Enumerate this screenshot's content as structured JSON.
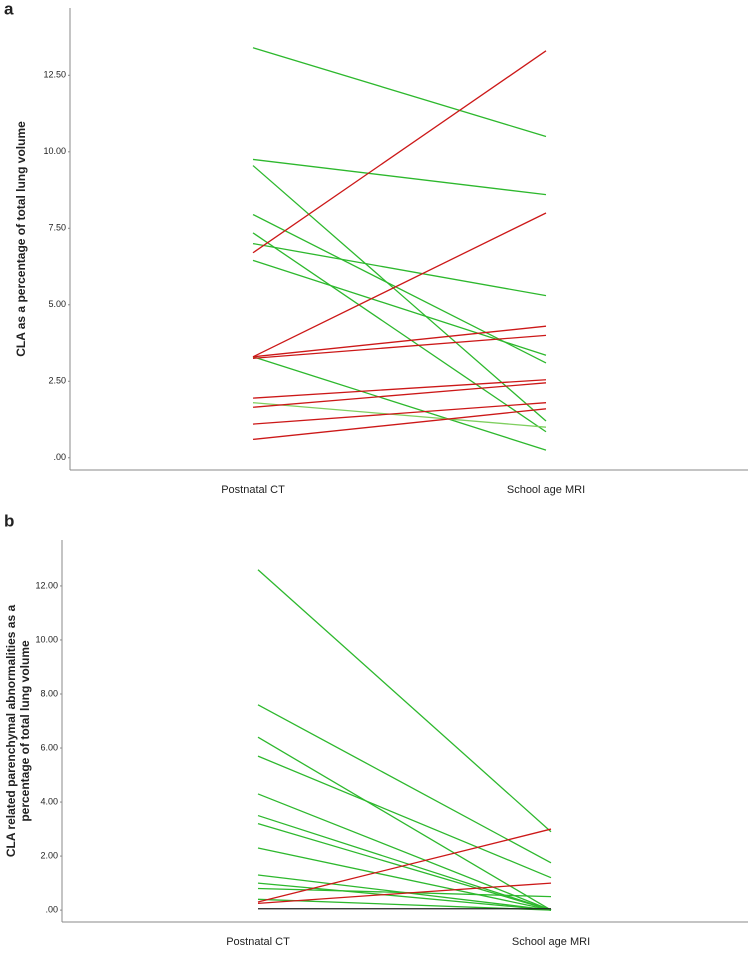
{
  "chart_data": [
    {
      "type": "line",
      "title": "a",
      "ylabel": [
        "CLA as a percentage of total lung volume"
      ],
      "categories": [
        "Postnatal CT",
        "School age MRI"
      ],
      "ylim": [
        -0.4,
        14.7
      ],
      "yticks": [
        {
          "value": 0,
          "label": ".00"
        },
        {
          "value": 2.5,
          "label": "2.50"
        },
        {
          "value": 5,
          "label": "5.00"
        },
        {
          "value": 7.5,
          "label": "7.50"
        },
        {
          "value": 10,
          "label": "10.00"
        },
        {
          "value": 12.5,
          "label": "12.50"
        }
      ],
      "series": [
        {
          "color": "#2db82d",
          "values": [
            13.4,
            10.5
          ]
        },
        {
          "color": "#2db82d",
          "values": [
            9.75,
            8.6
          ]
        },
        {
          "color": "#2db82d",
          "values": [
            9.55,
            1.2
          ]
        },
        {
          "color": "#2db82d",
          "values": [
            7.95,
            3.1
          ]
        },
        {
          "color": "#2db82d",
          "values": [
            7.35,
            0.85
          ]
        },
        {
          "color": "#2db82d",
          "values": [
            7.0,
            5.3
          ]
        },
        {
          "color": "#2db82d",
          "values": [
            6.45,
            3.35
          ]
        },
        {
          "color": "#2db82d",
          "values": [
            3.3,
            0.25
          ]
        },
        {
          "color": "#7fcf5f",
          "values": [
            1.8,
            1.0
          ]
        },
        {
          "color": "#cc1818",
          "values": [
            6.7,
            13.3
          ]
        },
        {
          "color": "#cc1818",
          "values": [
            3.3,
            8.0
          ]
        },
        {
          "color": "#cc1818",
          "values": [
            3.3,
            4.3
          ]
        },
        {
          "color": "#cc1818",
          "values": [
            3.25,
            4.0
          ]
        },
        {
          "color": "#cc1818",
          "values": [
            1.95,
            2.55
          ]
        },
        {
          "color": "#cc1818",
          "values": [
            1.65,
            2.45
          ]
        },
        {
          "color": "#cc1818",
          "values": [
            1.1,
            1.8
          ]
        },
        {
          "color": "#cc1818",
          "values": [
            0.6,
            1.6
          ]
        }
      ]
    },
    {
      "type": "line",
      "title": "b",
      "ylabel": [
        "CLA related parenchymal abnormalities as a",
        "percentage of total lung volume"
      ],
      "categories": [
        "Postnatal CT",
        "School age MRI"
      ],
      "ylim": [
        -0.44,
        13.7
      ],
      "yticks": [
        {
          "value": 0,
          "label": ".00"
        },
        {
          "value": 2,
          "label": "2.00"
        },
        {
          "value": 4,
          "label": "4.00"
        },
        {
          "value": 6,
          "label": "6.00"
        },
        {
          "value": 8,
          "label": "8.00"
        },
        {
          "value": 10,
          "label": "10.00"
        },
        {
          "value": 12,
          "label": "12.00"
        }
      ],
      "series": [
        {
          "color": "#2db82d",
          "values": [
            12.6,
            2.9
          ]
        },
        {
          "color": "#2db82d",
          "values": [
            7.6,
            1.75
          ]
        },
        {
          "color": "#2db82d",
          "values": [
            6.4,
            0
          ]
        },
        {
          "color": "#2db82d",
          "values": [
            5.7,
            1.2
          ]
        },
        {
          "color": "#2db82d",
          "values": [
            4.3,
            0
          ]
        },
        {
          "color": "#2db82d",
          "values": [
            3.5,
            0
          ]
        },
        {
          "color": "#2db82d",
          "values": [
            3.2,
            0
          ]
        },
        {
          "color": "#2db82d",
          "values": [
            2.3,
            0
          ]
        },
        {
          "color": "#2db82d",
          "values": [
            1.3,
            0
          ]
        },
        {
          "color": "#2db82d",
          "values": [
            1.0,
            0
          ]
        },
        {
          "color": "#2db82d",
          "values": [
            0.8,
            0.5
          ]
        },
        {
          "color": "#2db82d",
          "values": [
            0.4,
            0
          ]
        },
        {
          "color": "#222222",
          "values": [
            0.05,
            0.05
          ]
        },
        {
          "color": "#cc1818",
          "values": [
            0.3,
            3.0
          ]
        },
        {
          "color": "#cc1818",
          "values": [
            0.25,
            1.0
          ]
        }
      ]
    }
  ]
}
